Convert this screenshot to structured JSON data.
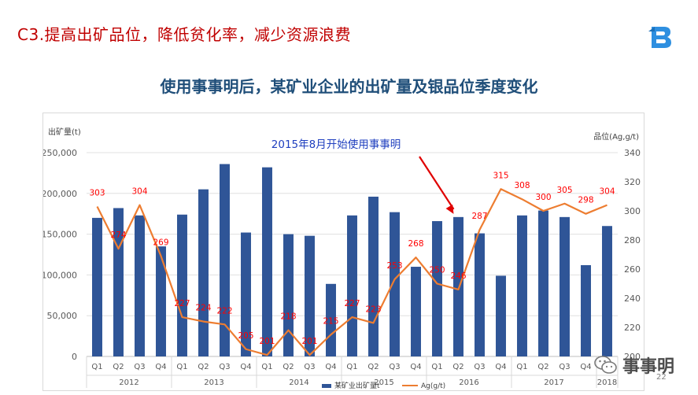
{
  "slide": {
    "title": "C3.提高出矿品位，降低贫化率，减少资源浪费",
    "page_number": "22",
    "watermark_text": "事事明"
  },
  "colors": {
    "bar": "#2f5597",
    "line": "#ed7d31",
    "line_label": "#ff0000",
    "title": "#1f4e79",
    "slide_title": "#c00000",
    "annotation": "#1f3fbf",
    "arrow": "#e00000"
  },
  "chart_data": {
    "type": "bar",
    "title": "使用事事明后，某矿业企业的出矿量及银品位季度变化",
    "ylabel": "出矿量(t)",
    "y2label": "品位(Ag,g/t)",
    "ylim": [
      0,
      250000
    ],
    "y2lim": [
      200,
      340
    ],
    "yticks": [
      "0",
      "50,000",
      "100,000",
      "150,000",
      "200,000",
      "250,000"
    ],
    "y2ticks": [
      "200",
      "220",
      "240",
      "260",
      "280",
      "300",
      "320",
      "340"
    ],
    "categories": [
      "Q1",
      "Q2",
      "Q3",
      "Q4",
      "Q1",
      "Q2",
      "Q3",
      "Q4",
      "Q1",
      "Q2",
      "Q3",
      "Q4",
      "Q1",
      "Q2",
      "Q3",
      "Q4",
      "Q1",
      "Q2",
      "Q3",
      "Q4",
      "Q1",
      "Q2",
      "Q3",
      "Q4",
      "Q1"
    ],
    "years": [
      {
        "label": "2012",
        "count": 4
      },
      {
        "label": "2013",
        "count": 4
      },
      {
        "label": "2014",
        "count": 4
      },
      {
        "label": "2015",
        "count": 4
      },
      {
        "label": "2016",
        "count": 4
      },
      {
        "label": "2017",
        "count": 4
      },
      {
        "label": "2018",
        "count": 1
      }
    ],
    "series": [
      {
        "name": "某矿业出矿量t",
        "type": "bar",
        "axis": "left",
        "values": [
          170000,
          182000,
          173000,
          135000,
          174000,
          205000,
          236000,
          152000,
          232000,
          150000,
          148000,
          89000,
          173000,
          196000,
          177000,
          110000,
          166000,
          171000,
          151000,
          99000,
          173000,
          179000,
          171000,
          112000,
          160000
        ]
      },
      {
        "name": "Ag(g/t)",
        "type": "line",
        "axis": "right",
        "values": [
          303,
          274,
          304,
          269,
          227,
          224,
          222,
          205,
          201,
          218,
          201,
          215,
          227,
          223,
          253,
          268,
          250,
          246,
          287,
          315,
          308,
          300,
          305,
          298,
          304
        ],
        "labels": [
          "303",
          "274",
          "304",
          "269",
          "227",
          "224",
          "222",
          "205",
          "201",
          "218",
          "201",
          "215",
          "227",
          "223",
          "253",
          "268",
          "250",
          "246",
          "287",
          "315",
          "308",
          "300",
          "305",
          "298",
          "304"
        ]
      }
    ],
    "annotation": {
      "text": "2015年8月开始使用事事明",
      "target_index": 17
    },
    "legend_position": "bottom",
    "grid": true
  }
}
